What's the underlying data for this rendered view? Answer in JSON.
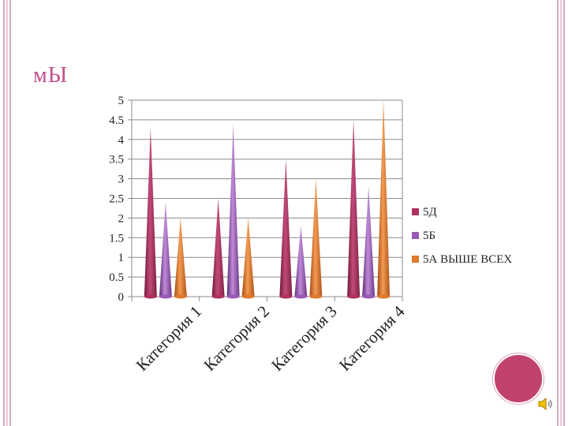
{
  "slide": {
    "title": "мЫ"
  },
  "colors": {
    "accent": "#c2508a",
    "frame": "#d9a9c3",
    "badge": "#c2426e"
  },
  "chart_data": {
    "type": "bar",
    "title": "",
    "xlabel": "",
    "ylabel": "",
    "ylim": [
      0,
      5
    ],
    "yticks": [
      "0",
      "0.5",
      "1",
      "1.5",
      "2",
      "2.5",
      "3",
      "3.5",
      "4",
      "4.5",
      "5"
    ],
    "categories": [
      "Категория 1",
      "Категория 2",
      "Категория 3",
      "Категория 4"
    ],
    "series": [
      {
        "name": "5Д",
        "color": "#b03060",
        "values": [
          4.3,
          2.5,
          3.5,
          4.5
        ]
      },
      {
        "name": "5Б",
        "color": "#9b59b6",
        "values": [
          2.4,
          4.4,
          1.8,
          2.8
        ]
      },
      {
        "name": "5А ВЫШЕ ВСЕХ",
        "color": "#e07a2e",
        "values": [
          2.0,
          2.0,
          3.0,
          5.0
        ]
      }
    ],
    "grid": true,
    "legend": "right"
  },
  "icons": {
    "badge": "circle-badge-icon",
    "speaker": "speaker-icon"
  }
}
